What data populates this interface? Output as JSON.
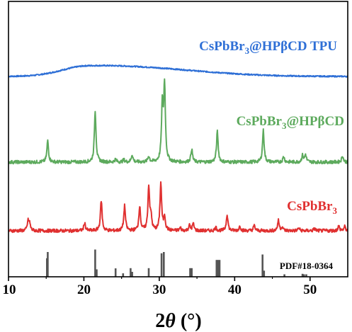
{
  "chart_data": {
    "type": "line",
    "xlabel": "2θ (°)",
    "xlabel_main": "2",
    "xlabel_theta": "θ",
    "xlabel_unit": " (°)",
    "xlim": [
      10,
      55
    ],
    "x_ticks": [
      10,
      20,
      30,
      40,
      50
    ],
    "y_ticks": [],
    "series": [
      {
        "name": "CsPbBr3@HPβCD TPU",
        "label_parts": [
          "CsPbBr",
          "3",
          "@HPβCD TPU"
        ],
        "color": "#2E6FD6",
        "baseline": 0.97,
        "amorphous_hump": {
          "center": 20.5,
          "width": 4.2,
          "height": 1.0
        },
        "peaks": []
      },
      {
        "name": "CsPbBr3@HPβCD",
        "label_parts": [
          "CsPbBr",
          "3",
          "@HPβCD"
        ],
        "color": "#5DAA5D",
        "baseline": 0.42,
        "peaks": [
          [
            15.2,
            1.15
          ],
          [
            21.5,
            2.8
          ],
          [
            24.2,
            0.15
          ],
          [
            25.3,
            0.12
          ],
          [
            26.4,
            0.4
          ],
          [
            28.6,
            0.32
          ],
          [
            30.4,
            2.95
          ],
          [
            30.7,
            4.1
          ],
          [
            34.3,
            0.7
          ],
          [
            37.7,
            1.65
          ],
          [
            43.8,
            1.72
          ],
          [
            46.5,
            0.3
          ],
          [
            49.0,
            0.35
          ],
          [
            49.4,
            0.4
          ],
          [
            54.3,
            0.35
          ]
        ]
      },
      {
        "name": "CsPbBr3",
        "label_parts": [
          "CsPbBr",
          "3"
        ],
        "color": "#E03030",
        "baseline": 0.0,
        "peaks": [
          [
            12.6,
            0.5
          ],
          [
            12.8,
            0.35
          ],
          [
            20.1,
            0.42
          ],
          [
            22.3,
            1.65
          ],
          [
            25.4,
            1.35
          ],
          [
            27.4,
            1.33
          ],
          [
            28.6,
            2.4
          ],
          [
            28.9,
            0.7
          ],
          [
            30.2,
            2.55
          ],
          [
            30.7,
            0.75
          ],
          [
            32.8,
            0.15
          ],
          [
            34.0,
            0.28
          ],
          [
            34.5,
            0.38
          ],
          [
            37.5,
            0.18
          ],
          [
            39.0,
            0.9
          ],
          [
            40.7,
            0.25
          ],
          [
            42.6,
            0.28
          ],
          [
            45.8,
            0.55
          ],
          [
            46.3,
            0.2
          ],
          [
            48.5,
            0.15
          ],
          [
            50.6,
            0.12
          ],
          [
            53.8,
            0.25
          ],
          [
            54.6,
            0.22
          ]
        ]
      }
    ],
    "reference": {
      "name": "PDF#18-0364",
      "color": "#555555",
      "lines": [
        [
          15.1,
          0.75
        ],
        [
          15.2,
          1.0
        ],
        [
          21.5,
          1.1
        ],
        [
          21.7,
          0.3
        ],
        [
          24.2,
          0.34
        ],
        [
          25.2,
          0.14
        ],
        [
          26.2,
          0.35
        ],
        [
          26.4,
          0.2
        ],
        [
          28.6,
          0.35
        ],
        [
          30.3,
          0.95
        ],
        [
          30.6,
          1.0
        ],
        [
          34.1,
          0.35
        ],
        [
          34.3,
          0.35
        ],
        [
          37.6,
          0.68
        ],
        [
          37.8,
          0.68
        ],
        [
          38.0,
          0.68
        ],
        [
          43.7,
          0.9
        ],
        [
          43.9,
          0.25
        ],
        [
          46.6,
          0.1
        ],
        [
          49.0,
          0.12
        ],
        [
          49.2,
          0.1
        ],
        [
          49.5,
          0.1
        ]
      ]
    }
  }
}
